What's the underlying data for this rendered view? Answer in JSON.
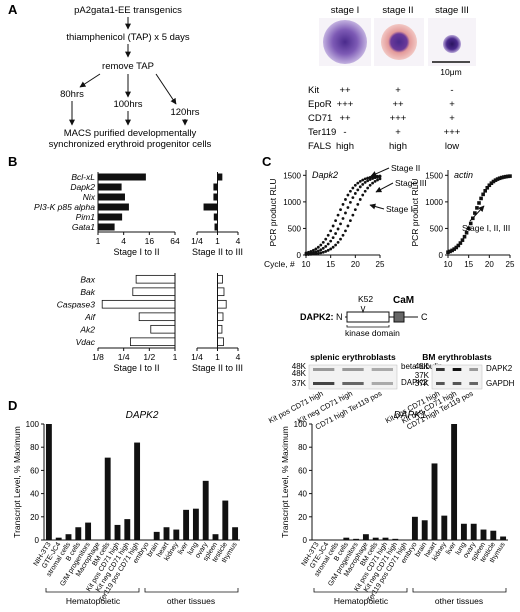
{
  "panelA": {
    "letter": "A",
    "flow": {
      "step1": "pA2gata1-EE transgenics",
      "step2": "thiamphenicol (TAP) x 5 days",
      "step3": "remove TAP",
      "times": [
        "80hrs",
        "100hrs",
        "120hrs"
      ],
      "step4_line1": "MACS purified developmentally",
      "step4_line2": "synchronized erythroid progenitor cells"
    },
    "stages": [
      "stage I",
      "stage II",
      "stage III"
    ],
    "scale_bar": "10μm",
    "markers": [
      {
        "name": "Kit",
        "values": [
          "++",
          "+",
          "-"
        ]
      },
      {
        "name": "EpoR",
        "values": [
          "+++",
          "++",
          "+"
        ]
      },
      {
        "name": "CD71",
        "values": [
          "++",
          "+++",
          "+"
        ]
      },
      {
        "name": "Ter119",
        "values": [
          "-",
          "+",
          "+++"
        ]
      },
      {
        "name": "FALS",
        "values": [
          "high",
          "high",
          "low"
        ]
      }
    ]
  },
  "panelB": {
    "letter": "B",
    "top_genes": [
      "Bcl-xL",
      "Dapk2",
      "Nix",
      "PI3-K p85 alpha",
      "Pim1",
      "Gata1"
    ],
    "top_I_to_II": [
      13,
      3.5,
      4.2,
      5.2,
      3.6,
      2.4
    ],
    "top_II_to_III": [
      1.35,
      0.78,
      0.78,
      0.4,
      0.8,
      0.84
    ],
    "top_left_ticks": [
      "1",
      "4",
      "16",
      "64"
    ],
    "top_right_ticks": [
      "1/4",
      "1",
      "4"
    ],
    "top_left_xlabel": "Stage I to II",
    "top_right_xlabel": "Stage II to III",
    "bottom_genes": [
      "Bax",
      "Bak",
      "Caspase3",
      "Aif",
      "Ak2",
      "Vdac"
    ],
    "bottom_I_to_II": [
      0.35,
      0.32,
      0.14,
      0.38,
      0.52,
      0.3
    ],
    "bottom_II_to_III": [
      1.4,
      1.55,
      1.8,
      1.45,
      1.35,
      1.5
    ],
    "bottom_left_ticks": [
      "1/8",
      "1/4",
      "1/2",
      "1"
    ],
    "bottom_right_ticks": [
      "1/4",
      "1",
      "4"
    ],
    "bottom_left_xlabel": "Stage I to II",
    "bottom_right_xlabel": "Stage II to III"
  },
  "panelC": {
    "letter": "C",
    "dapk2_title": "Dapk2",
    "actin_title": "actin",
    "ylabel": "PCR product RLU",
    "xlabel": "Cycle, #",
    "yticks": [
      "0",
      "500",
      "1000",
      "1500"
    ],
    "xticks": [
      "10",
      "15",
      "20",
      "25"
    ],
    "dapk2_labels": [
      "Stage II",
      "Stage III",
      "Stage I"
    ],
    "actin_label": "Stage I, II, III",
    "domain": {
      "protein": "DAPK2:",
      "n": "N",
      "c": "C",
      "k52": "K52",
      "cam": "CaM",
      "kinase": "kinase domain"
    },
    "blot_left": {
      "title": "splenic erythroblasts",
      "mw": [
        "48K",
        "48K",
        "37K"
      ],
      "bands": [
        "beta tubulin",
        "DAPK2"
      ],
      "lanes": [
        "Kit pos CD71 high",
        "Kit neg CD71 high",
        "CD71 high Ter119 pos"
      ]
    },
    "blot_right": {
      "title": "BM erythroblasts",
      "mw": [
        "48K",
        "37K",
        "37K"
      ],
      "bands": [
        "DAPK2",
        "GAPDH"
      ],
      "lanes": [
        "Kit pos CD71 high",
        "Kit neg CD71 high",
        "CD71 high Ter119 pos"
      ]
    }
  },
  "panelD": {
    "letter": "D",
    "ylabel": "Transcript Level, % Maximum",
    "yticks": [
      "0",
      "20",
      "40",
      "60",
      "80",
      "100"
    ],
    "group_hemato": "Hematopoietic",
    "group_other": "other tissues",
    "hemato_labels": [
      "NIH-3T3",
      "GTE-JC4",
      "stromal cells",
      "B cells",
      "G/M progenitors",
      "Macrophage",
      "BM cells",
      "Kit pos CD71 high",
      "Kit neg CD71 high",
      "Ter119 pos CD71 high"
    ],
    "other_labels": [
      "embryo",
      "brain",
      "heart",
      "kidney",
      "liver",
      "lung",
      "ovary",
      "spleen",
      "testicle",
      "thymus"
    ],
    "dapk2": {
      "title": "DAPK2",
      "hemato": [
        100,
        2,
        5,
        11,
        15,
        0,
        71,
        13,
        18,
        84
      ],
      "other": [
        0,
        7,
        11,
        9,
        26,
        27,
        51,
        5,
        34,
        11
      ]
    },
    "dapk1": {
      "title": "DAPK1",
      "hemato": [
        0,
        0,
        0,
        2,
        1,
        5,
        2,
        2,
        1,
        0
      ],
      "other": [
        20,
        17,
        66,
        21,
        100,
        14,
        14,
        9,
        8,
        3
      ]
    }
  }
}
